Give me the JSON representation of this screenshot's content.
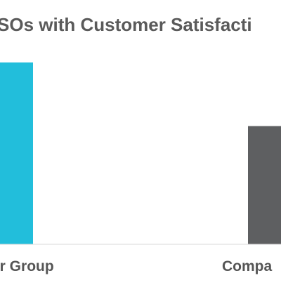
{
  "chart_data": {
    "type": "bar",
    "title": "SOs with Customer Satisfacti",
    "categories": [
      "er Group",
      "Compa"
    ],
    "values": [
      100,
      65
    ],
    "colors": [
      "#22bedb",
      "#5e5f61"
    ],
    "ylim": [
      0,
      100
    ],
    "xlabel": "",
    "ylabel": "",
    "grid": false,
    "legend": "none"
  }
}
